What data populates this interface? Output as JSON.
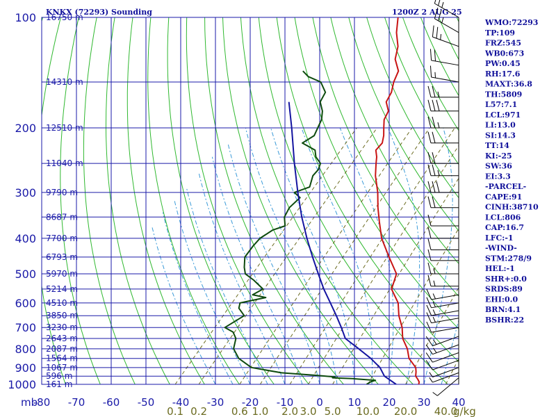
{
  "header": {
    "station": "KNKX (72293) Sounding",
    "time": "1200Z  2 AUG 25"
  },
  "pressure_unit": "mb",
  "mixing_unit": "g/kg",
  "indices": [
    "WMO:72293",
    "TP:109",
    "FRZ:545",
    "WB0:673",
    "PW:0.45",
    "RH:17.6",
    "MAXT:36.8",
    "TH:5809",
    "L57:7.1",
    "LCL:971",
    "LI:13.0",
    "SI:14.3",
    "TT:14",
    "KI:-25",
    "SW:36",
    "EI:3.3",
    "-PARCEL-",
    "CAPE:91",
    "CINH:38710",
    "LCL:806",
    "CAP:16.7",
    "LFC:-1",
    "-WIND-",
    "STM:278/9",
    "HEL:-1",
    "SHR+:0.0",
    "SRDS:89",
    "EHI:0.0",
    "BRN:4.1",
    "BSHR:22"
  ],
  "colors": {
    "grid": "#1a1aa8",
    "dry_adiabat": "#2fb82f",
    "mixing_ratio": "#6b6b20",
    "moist_adiabat": "#3a9ad8",
    "temperature": "#c81414",
    "dewpoint": "#0d4a0d",
    "parcel": "#1414a0",
    "wind": "#000000"
  },
  "chart_data": {
    "type": "skew-t",
    "title": "KNKX (72293) Sounding",
    "ylabel": "mb",
    "y_scale": "log",
    "ylim": [
      1000,
      100
    ],
    "xlim": [
      -80,
      40
    ],
    "pressure_ticks": [
      100,
      200,
      300,
      400,
      500,
      600,
      700,
      800,
      900,
      1000
    ],
    "temperature_ticks": [
      -80,
      -70,
      -60,
      -50,
      -40,
      -30,
      -20,
      -10,
      0,
      10,
      20,
      30,
      40
    ],
    "height_labels": [
      {
        "p": 100,
        "text": "16750 m"
      },
      {
        "p": 150,
        "text": "14310 m"
      },
      {
        "p": 200,
        "text": "12510 m"
      },
      {
        "p": 250,
        "text": "11040 m"
      },
      {
        "p": 300,
        "text": "9790 m"
      },
      {
        "p": 350,
        "text": "8687 m"
      },
      {
        "p": 400,
        "text": "7700 m"
      },
      {
        "p": 450,
        "text": "6793 m"
      },
      {
        "p": 500,
        "text": "5970 m"
      },
      {
        "p": 550,
        "text": "5214 m"
      },
      {
        "p": 600,
        "text": "4510 m"
      },
      {
        "p": 650,
        "text": "3850 m"
      },
      {
        "p": 700,
        "text": "3230 m"
      },
      {
        "p": 750,
        "text": "2643 m"
      },
      {
        "p": 800,
        "text": "2087 m"
      },
      {
        "p": 850,
        "text": "1564 m"
      },
      {
        "p": 900,
        "text": "1067 m"
      },
      {
        "p": 950,
        "text": "596 m"
      },
      {
        "p": 1000,
        "text": "161 m"
      }
    ],
    "mixing_ratio_ticks": [
      {
        "w": 0.1,
        "label": "0.1"
      },
      {
        "w": 0.2,
        "label": "0.2"
      },
      {
        "w": 0.6,
        "label": "0.6"
      },
      {
        "w": 1.0,
        "label": "1.0"
      },
      {
        "w": 2.0,
        "label": "2.0"
      },
      {
        "w": 3.0,
        "label": "3.0"
      },
      {
        "w": 5.0,
        "label": "5.0"
      },
      {
        "w": 10.0,
        "label": "10.0"
      },
      {
        "w": 20.0,
        "label": "20.0"
      },
      {
        "w": 40.0,
        "label": "40.0"
      }
    ],
    "series": [
      {
        "name": "temperature",
        "points": [
          [
            100,
            -72.5
          ],
          [
            110,
            -69
          ],
          [
            120,
            -65
          ],
          [
            130,
            -62.5
          ],
          [
            140,
            -58.5
          ],
          [
            150,
            -57
          ],
          [
            160,
            -55
          ],
          [
            170,
            -54
          ],
          [
            180,
            -51
          ],
          [
            190,
            -50
          ],
          [
            200,
            -48
          ],
          [
            210,
            -46
          ],
          [
            220,
            -44.5
          ],
          [
            230,
            -44.5
          ],
          [
            240,
            -42.5
          ],
          [
            250,
            -41
          ],
          [
            270,
            -38
          ],
          [
            300,
            -33
          ],
          [
            330,
            -29
          ],
          [
            360,
            -25
          ],
          [
            400,
            -20
          ],
          [
            450,
            -13
          ],
          [
            500,
            -6.5
          ],
          [
            550,
            -4
          ],
          [
            600,
            1.5
          ],
          [
            650,
            5
          ],
          [
            700,
            9
          ],
          [
            750,
            12
          ],
          [
            800,
            16
          ],
          [
            850,
            19
          ],
          [
            900,
            23.3
          ],
          [
            925,
            24.5
          ],
          [
            950,
            25.5
          ],
          [
            970,
            27
          ],
          [
            985,
            28
          ],
          [
            1000,
            28.5
          ]
        ]
      },
      {
        "name": "dewpoint",
        "points": [
          [
            140,
            -86
          ],
          [
            145,
            -83
          ],
          [
            150,
            -78
          ],
          [
            160,
            -74
          ],
          [
            170,
            -73
          ],
          [
            180,
            -70
          ],
          [
            190,
            -68
          ],
          [
            200,
            -67
          ],
          [
            210,
            -66
          ],
          [
            220,
            -67.5
          ],
          [
            230,
            -62
          ],
          [
            240,
            -60
          ],
          [
            250,
            -57
          ],
          [
            260,
            -56
          ],
          [
            270,
            -56
          ],
          [
            290,
            -54
          ],
          [
            300,
            -57
          ],
          [
            310,
            -54
          ],
          [
            330,
            -54.5
          ],
          [
            350,
            -53.5
          ],
          [
            370,
            -51
          ],
          [
            380,
            -53.5
          ],
          [
            400,
            -55
          ],
          [
            420,
            -55
          ],
          [
            450,
            -54.5
          ],
          [
            480,
            -52
          ],
          [
            500,
            -50
          ],
          [
            520,
            -46
          ],
          [
            550,
            -41
          ],
          [
            570,
            -42.5
          ],
          [
            580,
            -38
          ],
          [
            600,
            -44
          ],
          [
            620,
            -43
          ],
          [
            650,
            -39.5
          ],
          [
            700,
            -42
          ],
          [
            720,
            -38.5
          ],
          [
            750,
            -36
          ],
          [
            800,
            -34
          ],
          [
            850,
            -30
          ],
          [
            900,
            -24
          ],
          [
            930,
            -14
          ],
          [
            945,
            -3.5
          ],
          [
            955,
            2.5
          ],
          [
            960,
            2
          ],
          [
            965,
            8
          ],
          [
            975,
            15
          ],
          [
            985,
            14
          ],
          [
            1000,
            13.5
          ]
        ]
      },
      {
        "name": "parcel",
        "points": [
          [
            170,
            -82
          ],
          [
            200,
            -74.5
          ],
          [
            250,
            -64.5
          ],
          [
            300,
            -56
          ],
          [
            350,
            -48.5
          ],
          [
            400,
            -41.5
          ],
          [
            450,
            -35
          ],
          [
            500,
            -29
          ],
          [
            550,
            -23.5
          ],
          [
            600,
            -18
          ],
          [
            650,
            -13
          ],
          [
            700,
            -8.5
          ],
          [
            750,
            -4.5
          ],
          [
            800,
            2
          ],
          [
            850,
            8
          ],
          [
            900,
            13
          ],
          [
            950,
            16.5
          ],
          [
            1000,
            22
          ]
        ]
      }
    ],
    "wind_barbs": [
      {
        "p": 100,
        "dir": 300,
        "spd": 25
      },
      {
        "p": 110,
        "dir": 300,
        "spd": 25
      },
      {
        "p": 120,
        "dir": 290,
        "spd": 25
      },
      {
        "p": 135,
        "dir": 280,
        "spd": 20
      },
      {
        "p": 150,
        "dir": 280,
        "spd": 15
      },
      {
        "p": 165,
        "dir": 270,
        "spd": 25
      },
      {
        "p": 180,
        "dir": 270,
        "spd": 30
      },
      {
        "p": 200,
        "dir": 270,
        "spd": 25
      },
      {
        "p": 220,
        "dir": 270,
        "spd": 20
      },
      {
        "p": 250,
        "dir": 270,
        "spd": 20
      },
      {
        "p": 270,
        "dir": 270,
        "spd": 25
      },
      {
        "p": 300,
        "dir": 270,
        "spd": 30
      },
      {
        "p": 330,
        "dir": 270,
        "spd": 20
      },
      {
        "p": 370,
        "dir": 270,
        "spd": 10
      },
      {
        "p": 400,
        "dir": 270,
        "spd": 10
      },
      {
        "p": 430,
        "dir": 270,
        "spd": 10
      },
      {
        "p": 460,
        "dir": 270,
        "spd": 10
      },
      {
        "p": 500,
        "dir": 270,
        "spd": 15
      },
      {
        "p": 540,
        "dir": 270,
        "spd": 15
      },
      {
        "p": 570,
        "dir": 260,
        "spd": 15
      },
      {
        "p": 600,
        "dir": 260,
        "spd": 15
      },
      {
        "p": 630,
        "dir": 260,
        "spd": 15
      },
      {
        "p": 660,
        "dir": 260,
        "spd": 15
      },
      {
        "p": 700,
        "dir": 260,
        "spd": 10
      },
      {
        "p": 740,
        "dir": 250,
        "spd": 15
      },
      {
        "p": 780,
        "dir": 250,
        "spd": 15
      },
      {
        "p": 820,
        "dir": 250,
        "spd": 10
      },
      {
        "p": 860,
        "dir": 250,
        "spd": 10
      },
      {
        "p": 900,
        "dir": 250,
        "spd": 5
      },
      {
        "p": 930,
        "dir": 250,
        "spd": 5
      },
      {
        "p": 960,
        "dir": 230,
        "spd": 5
      }
    ]
  }
}
